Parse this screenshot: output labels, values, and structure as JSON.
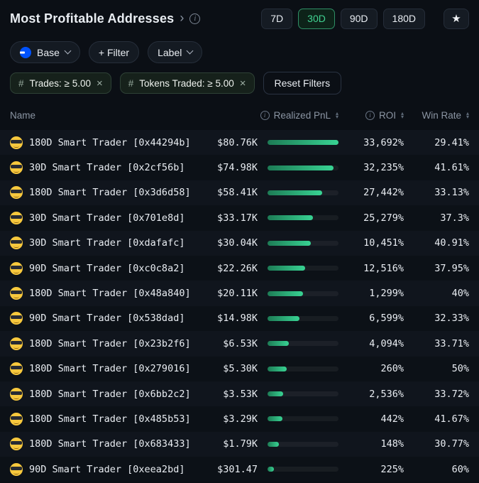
{
  "header": {
    "title": "Most Profitable Addresses",
    "chevron": "›",
    "info_icon": "i",
    "periods": [
      {
        "label": "7D",
        "selected": false
      },
      {
        "label": "30D",
        "selected": true
      },
      {
        "label": "90D",
        "selected": false
      },
      {
        "label": "180D",
        "selected": false
      }
    ],
    "star_icon": "★"
  },
  "filters": {
    "chain_selector": {
      "label": "Base"
    },
    "add_filter": {
      "label": "+ Filter"
    },
    "label_dropdown": {
      "label": "Label"
    },
    "chips": [
      {
        "prefix": "#",
        "label": "Trades: ≥ 5.00",
        "close_icon": "×"
      },
      {
        "prefix": "#",
        "label": "Tokens Traded: ≥ 5.00",
        "close_icon": "×"
      }
    ],
    "reset_button": {
      "label": "Reset Filters"
    }
  },
  "table": {
    "headers": {
      "name": "Name",
      "realized_pnl": "Realized PnL",
      "roi": "ROI",
      "win_rate": "Win Rate"
    },
    "rows": [
      {
        "name": "180D Smart Trader [0x44294b]",
        "pnl": "$80.76K",
        "bar_pct": 100,
        "roi": "33,692%",
        "win_rate": "29.41%"
      },
      {
        "name": "30D Smart Trader [0x2cf56b]",
        "pnl": "$74.98K",
        "bar_pct": 93,
        "roi": "32,235%",
        "win_rate": "41.61%"
      },
      {
        "name": "180D Smart Trader [0x3d6d58]",
        "pnl": "$58.41K",
        "bar_pct": 77,
        "roi": "27,442%",
        "win_rate": "33.13%"
      },
      {
        "name": "30D Smart Trader [0x701e8d]",
        "pnl": "$33.17K",
        "bar_pct": 64,
        "roi": "25,279%",
        "win_rate": "37.3%"
      },
      {
        "name": "30D Smart Trader [0xdafafc]",
        "pnl": "$30.04K",
        "bar_pct": 61,
        "roi": "10,451%",
        "win_rate": "40.91%"
      },
      {
        "name": "90D Smart Trader [0xc0c8a2]",
        "pnl": "$22.26K",
        "bar_pct": 53,
        "roi": "12,516%",
        "win_rate": "37.95%"
      },
      {
        "name": "180D Smart Trader [0x48a840]",
        "pnl": "$20.11K",
        "bar_pct": 50,
        "roi": "1,299%",
        "win_rate": "40%"
      },
      {
        "name": "90D Smart Trader [0x538dad]",
        "pnl": "$14.98K",
        "bar_pct": 45,
        "roi": "6,599%",
        "win_rate": "32.33%"
      },
      {
        "name": "180D Smart Trader [0x23b2f6]",
        "pnl": "$6.53K",
        "bar_pct": 30,
        "roi": "4,094%",
        "win_rate": "33.71%"
      },
      {
        "name": "180D Smart Trader [0x279016]",
        "pnl": "$5.30K",
        "bar_pct": 27,
        "roi": "260%",
        "win_rate": "50%"
      },
      {
        "name": "180D Smart Trader [0x6bb2c2]",
        "pnl": "$3.53K",
        "bar_pct": 22,
        "roi": "2,536%",
        "win_rate": "33.72%"
      },
      {
        "name": "180D Smart Trader [0x485b53]",
        "pnl": "$3.29K",
        "bar_pct": 21,
        "roi": "442%",
        "win_rate": "41.67%"
      },
      {
        "name": "180D Smart Trader [0x683433]",
        "pnl": "$1.79K",
        "bar_pct": 16,
        "roi": "148%",
        "win_rate": "30.77%"
      },
      {
        "name": "90D Smart Trader [0xeea2bd]",
        "pnl": "$301.47",
        "bar_pct": 9,
        "roi": "225%",
        "win_rate": "60%"
      }
    ]
  },
  "icons": {
    "sort_up": "▴",
    "sort_down": "▾"
  },
  "colors": {
    "background": "#0b0f15",
    "accent_green": "#38d393",
    "active_period_text": "#41d392",
    "base_blue": "#0052ff",
    "bar_gradient_start": "#1d7b55",
    "bar_gradient_end": "#38d393"
  }
}
